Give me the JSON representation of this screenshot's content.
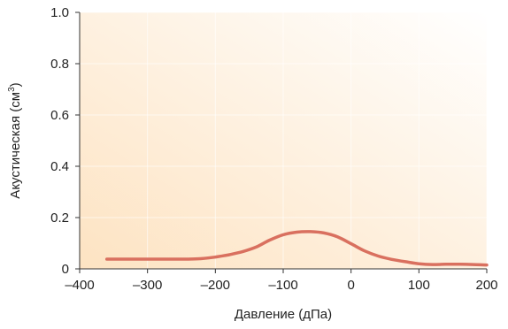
{
  "chart_data": {
    "type": "line",
    "title": "",
    "xlabel": "Давление (дПа)",
    "ylabel_main": "Акустическая (см",
    "ylabel_sup": "3",
    "ylabel_close": ")",
    "xlim": [
      -400,
      200
    ],
    "ylim": [
      0,
      1.0
    ],
    "xticks": [
      -400,
      -300,
      -200,
      -100,
      0,
      100,
      200
    ],
    "xtick_labels": [
      "–400",
      "–300",
      "–200",
      "–100",
      "0",
      "100",
      "200"
    ],
    "yticks": [
      0,
      0.2,
      0.4,
      0.6,
      0.8,
      1.0
    ],
    "ytick_labels": [
      "0",
      "0.2",
      "0.4",
      "0.6",
      "0.8",
      "1.0"
    ],
    "grid": true,
    "background_gradient": [
      "#fde3c2",
      "#ffffff"
    ],
    "series": [
      {
        "color": "#d9705f",
        "x": [
          -360,
          -300,
          -240,
          -220,
          -200,
          -180,
          -160,
          -140,
          -120,
          -100,
          -80,
          -60,
          -40,
          -20,
          0,
          20,
          40,
          60,
          80,
          100,
          120,
          140,
          160,
          180,
          200
        ],
        "y": [
          0.038,
          0.038,
          0.038,
          0.04,
          0.046,
          0.055,
          0.067,
          0.085,
          0.112,
          0.133,
          0.143,
          0.145,
          0.14,
          0.125,
          0.098,
          0.07,
          0.05,
          0.037,
          0.028,
          0.02,
          0.017,
          0.018,
          0.018,
          0.017,
          0.015
        ]
      }
    ]
  }
}
